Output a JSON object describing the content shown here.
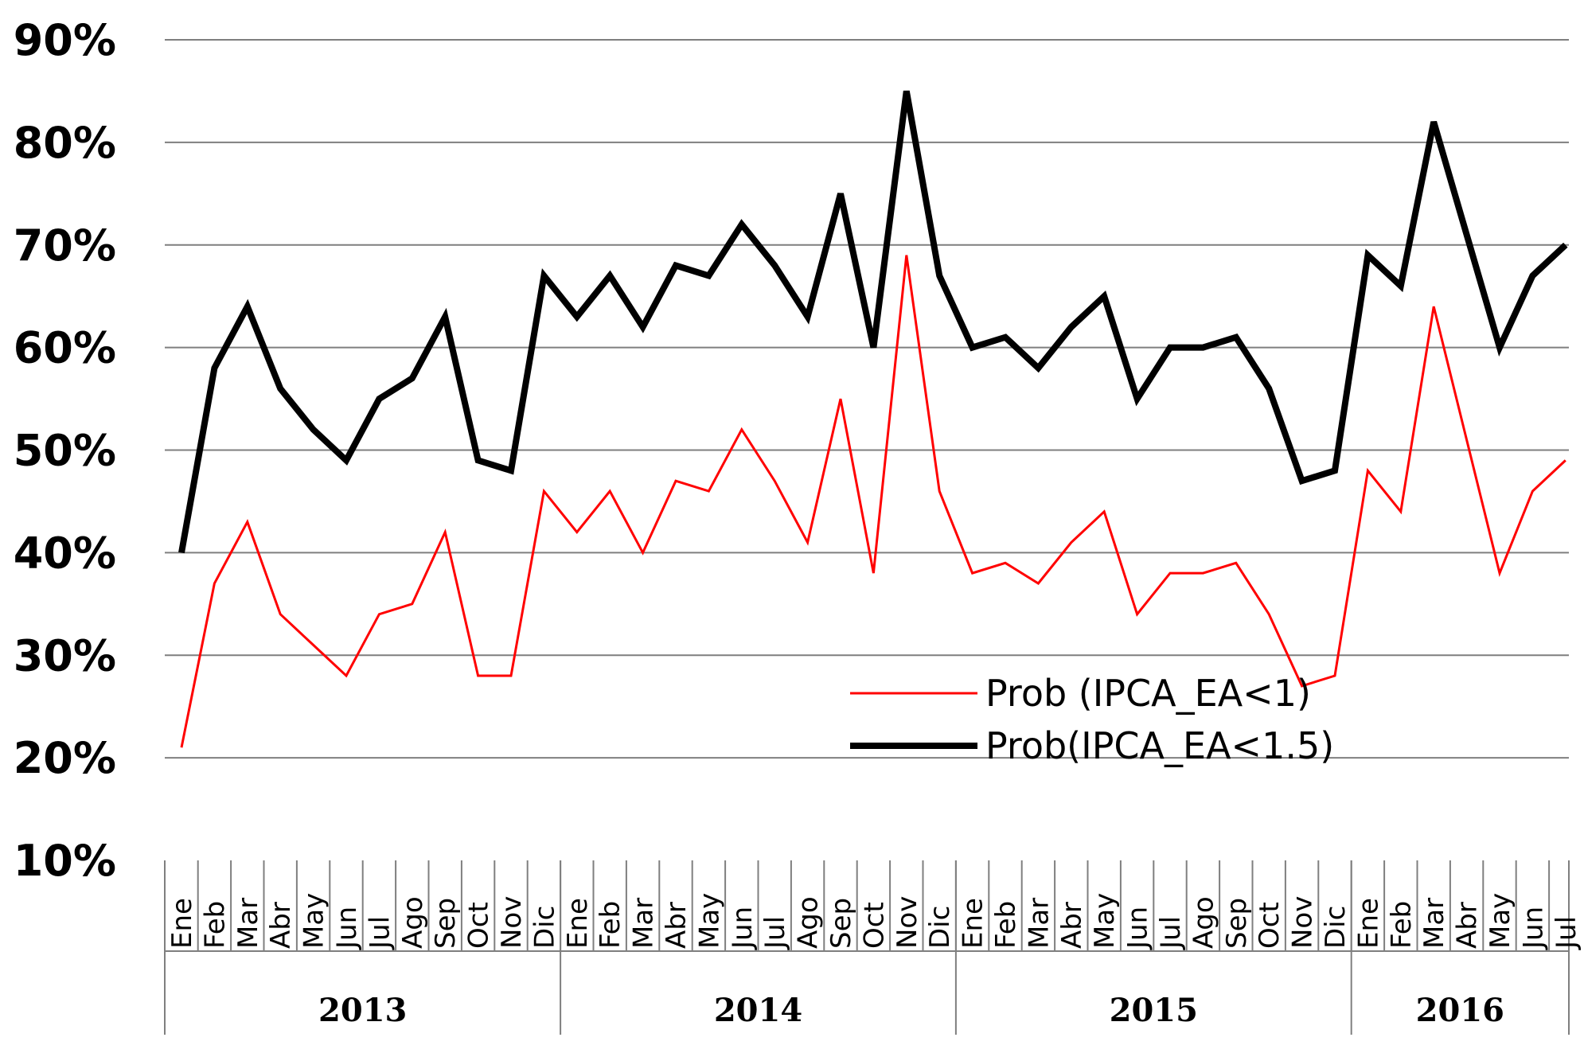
{
  "chart_data": {
    "type": "line",
    "title": "",
    "xlabel": "",
    "ylabel": "",
    "ylim": [
      0.1,
      0.9
    ],
    "yticks": [
      0.9,
      0.8,
      0.7,
      0.6,
      0.5,
      0.4,
      0.3,
      0.2,
      0.1
    ],
    "ytick_labels": [
      "90%",
      "80%",
      "70%",
      "60%",
      "50%",
      "40%",
      "30%",
      "20%",
      "10%"
    ],
    "categories": [
      "Ene",
      "Feb",
      "Mar",
      "Abr",
      "May",
      "Jun",
      "Jul",
      "Ago",
      "Sep",
      "Oct",
      "Nov",
      "Dic",
      "Ene",
      "Feb",
      "Mar",
      "Abr",
      "May",
      "Jun",
      "Jul",
      "Ago",
      "Sep",
      "Oct",
      "Nov",
      "Dic",
      "Ene",
      "Feb",
      "Mar",
      "Abr",
      "May",
      "Jun",
      "Jul",
      "Ago",
      "Sep",
      "Oct",
      "Nov",
      "Dic",
      "Ene",
      "Feb",
      "Mar",
      "Abr",
      "May",
      "Jun",
      "Jul"
    ],
    "years": [
      {
        "label": "2013",
        "start": 0,
        "end": 11
      },
      {
        "label": "2014",
        "start": 12,
        "end": 23
      },
      {
        "label": "2015",
        "start": 24,
        "end": 35
      },
      {
        "label": "2016",
        "start": 36,
        "end": 42
      }
    ],
    "grid": true,
    "legend_position": "bottom-right",
    "series": [
      {
        "name": "Prob (IPCA_EA<1)",
        "color": "#ff0000",
        "style": "thin",
        "values": [
          0.21,
          0.37,
          0.43,
          0.34,
          0.31,
          0.28,
          0.34,
          0.35,
          0.42,
          0.28,
          0.28,
          0.46,
          0.42,
          0.46,
          0.4,
          0.47,
          0.46,
          0.52,
          0.47,
          0.41,
          0.55,
          0.38,
          0.69,
          0.46,
          0.38,
          0.39,
          0.37,
          0.41,
          0.44,
          0.34,
          0.38,
          0.38,
          0.39,
          0.34,
          0.27,
          0.28,
          0.48,
          0.44,
          0.64,
          0.51,
          0.38,
          0.46,
          0.49
        ]
      },
      {
        "name": "Prob(IPCA_EA<1.5)",
        "color": "#000000",
        "style": "thick",
        "values": [
          0.4,
          0.58,
          0.64,
          0.56,
          0.52,
          0.49,
          0.55,
          0.57,
          0.63,
          0.49,
          0.48,
          0.67,
          0.63,
          0.67,
          0.62,
          0.68,
          0.67,
          0.72,
          0.68,
          0.63,
          0.75,
          0.6,
          0.85,
          0.67,
          0.6,
          0.61,
          0.58,
          0.62,
          0.65,
          0.55,
          0.6,
          0.6,
          0.61,
          0.56,
          0.47,
          0.48,
          0.69,
          0.66,
          0.82,
          0.71,
          0.6,
          0.67,
          0.7
        ]
      }
    ]
  }
}
